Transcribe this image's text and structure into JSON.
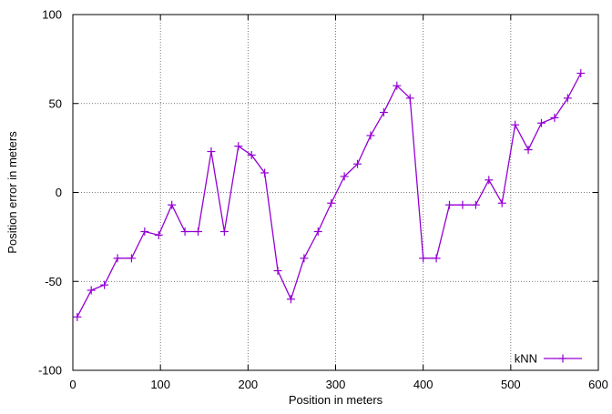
{
  "chart_data": {
    "type": "line",
    "xlabel": "Position in meters",
    "ylabel": "Position error in meters",
    "xlim": [
      0,
      600
    ],
    "ylim": [
      -100,
      100
    ],
    "xticks": [
      0,
      100,
      200,
      300,
      400,
      500,
      600
    ],
    "yticks": [
      -100,
      -50,
      0,
      50,
      100
    ],
    "grid": true,
    "grid_style": "dotted",
    "legend_position": "bottom-right",
    "series": [
      {
        "name": "kNN",
        "color": "#9400D3",
        "marker": "plus",
        "x": [
          5,
          21,
          36,
          51,
          67,
          82,
          98,
          113,
          128,
          143,
          158,
          173,
          189,
          204,
          219,
          234,
          249,
          264,
          280,
          295,
          310,
          325,
          340,
          355,
          370,
          385,
          400,
          415,
          430,
          445,
          460,
          475,
          490,
          505,
          520,
          535,
          550,
          565,
          580
        ],
        "y": [
          -70,
          -55,
          -52,
          -37,
          -37,
          -22,
          -24,
          -7,
          -22,
          -22,
          23,
          -22,
          26,
          21,
          11,
          -44,
          -60,
          -37,
          -22,
          -6,
          9,
          16,
          32,
          45,
          60,
          53,
          -37,
          -37,
          -7,
          -7,
          -7,
          7,
          -6,
          38,
          24,
          39,
          42,
          53,
          67
        ]
      }
    ]
  }
}
